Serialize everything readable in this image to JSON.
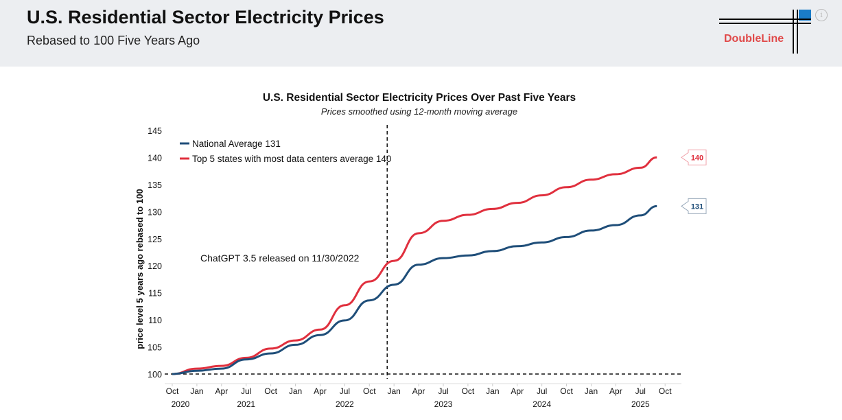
{
  "header": {
    "title": "U.S. Residential Sector Electricity Prices",
    "subtitle": "Rebased to 100 Five Years Ago",
    "logo_text": "DoubleLine",
    "info_icon": "info-icon"
  },
  "chart_data": {
    "type": "line",
    "title": "U.S. Residential Sector Electricity Prices Over Past Five Years",
    "subtitle": "Prices smoothed using 12-month moving average",
    "ylabel": "price level 5 years ago rebased to 100",
    "ylim": [
      100,
      145
    ],
    "yticks": [
      100,
      105,
      110,
      115,
      120,
      125,
      130,
      135,
      140,
      145
    ],
    "xticks": [
      {
        "label": "Oct",
        "month": 0
      },
      {
        "label": "Jan",
        "month": 3
      },
      {
        "label": "Apr",
        "month": 6
      },
      {
        "label": "Jul",
        "month": 9
      },
      {
        "label": "Oct",
        "month": 12
      },
      {
        "label": "Jan",
        "month": 15
      },
      {
        "label": "Apr",
        "month": 18
      },
      {
        "label": "Jul",
        "month": 21
      },
      {
        "label": "Oct",
        "month": 24
      },
      {
        "label": "Jan",
        "month": 27
      },
      {
        "label": "Apr",
        "month": 30
      },
      {
        "label": "Jul",
        "month": 33
      },
      {
        "label": "Oct",
        "month": 36
      },
      {
        "label": "Jan",
        "month": 39
      },
      {
        "label": "Apr",
        "month": 42
      },
      {
        "label": "Jul",
        "month": 45
      },
      {
        "label": "Oct",
        "month": 48
      },
      {
        "label": "Jan",
        "month": 51
      },
      {
        "label": "Apr",
        "month": 54
      },
      {
        "label": "Jul",
        "month": 57
      },
      {
        "label": "Oct",
        "month": 60
      }
    ],
    "years": [
      {
        "label": "2020",
        "month": 1
      },
      {
        "label": "2021",
        "month": 9
      },
      {
        "label": "2022",
        "month": 21
      },
      {
        "label": "2023",
        "month": 33
      },
      {
        "label": "2024",
        "month": 45
      },
      {
        "label": "2025",
        "month": 57
      }
    ],
    "x_months": [
      0,
      3,
      6,
      9,
      12,
      15,
      18,
      21,
      24,
      27,
      30,
      33,
      36,
      39,
      42,
      45,
      48,
      51,
      54,
      57,
      59
    ],
    "series": [
      {
        "name": "National Average 131",
        "color": "#1f4e79",
        "end_label": "131",
        "values": [
          100,
          100.6,
          101,
          102.7,
          103.8,
          105.4,
          107.2,
          109.9,
          113.6,
          116.5,
          120.2,
          121.4,
          121.9,
          122.7,
          123.6,
          124.3,
          125.3,
          126.5,
          127.5,
          129.3,
          131
        ]
      },
      {
        "name": "Top 5 states with most data centers average 140",
        "color": "#e0303e",
        "end_label": "140",
        "values": [
          100,
          101,
          101.5,
          103,
          104.7,
          106.2,
          108.2,
          112.7,
          117.1,
          120.9,
          126,
          128.3,
          129.4,
          130.5,
          131.6,
          133,
          134.5,
          135.9,
          136.9,
          138.1,
          140
        ]
      }
    ],
    "annotation": {
      "text": "ChatGPT 3.5 released on 11/30/2022",
      "month": 26
    }
  }
}
